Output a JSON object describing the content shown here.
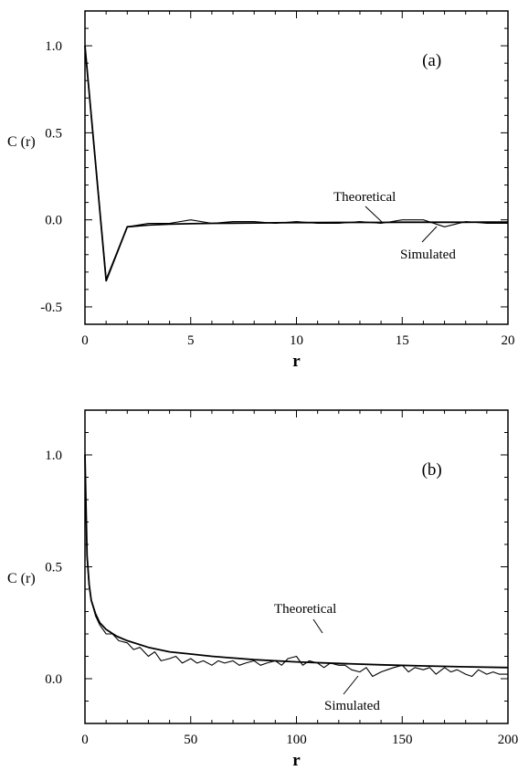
{
  "chart_data": [
    {
      "type": "line",
      "panel_label": "(a)",
      "xlabel": "r",
      "ylabel": "C (r)",
      "xlim": [
        0,
        20
      ],
      "ylim": [
        -0.6,
        1.2
      ],
      "xticks": [
        0,
        5,
        10,
        15,
        20
      ],
      "xtick_labels": [
        "0",
        "5",
        "10",
        "15",
        "20"
      ],
      "yticks": [
        -0.5,
        0.0,
        0.5,
        1.0
      ],
      "ytick_labels": [
        "-0.5",
        "0.0",
        "0.5",
        "1.0"
      ],
      "grid": false,
      "series": [
        {
          "name": "Theoretical",
          "x": [
            0,
            1,
            2,
            3,
            4,
            5,
            6,
            7,
            8,
            9,
            10,
            11,
            12,
            13,
            14,
            15,
            16,
            17,
            18,
            19,
            20
          ],
          "values": [
            1.0,
            -0.35,
            -0.04,
            -0.03,
            -0.025,
            -0.022,
            -0.02,
            -0.019,
            -0.018,
            -0.017,
            -0.016,
            -0.016,
            -0.015,
            -0.015,
            -0.015,
            -0.014,
            -0.014,
            -0.014,
            -0.014,
            -0.013,
            -0.013
          ]
        },
        {
          "name": "Simulated",
          "x": [
            0,
            1,
            2,
            3,
            4,
            5,
            6,
            7,
            8,
            9,
            10,
            11,
            12,
            13,
            14,
            15,
            16,
            17,
            18,
            19,
            20
          ],
          "values": [
            1.0,
            -0.34,
            -0.04,
            -0.02,
            -0.02,
            0.0,
            -0.02,
            -0.01,
            -0.01,
            -0.02,
            -0.01,
            -0.02,
            -0.02,
            -0.01,
            -0.02,
            0.0,
            0.0,
            -0.04,
            -0.01,
            -0.02,
            -0.02
          ]
        }
      ],
      "annotations": [
        {
          "text": "Theoretical",
          "series": "Theoretical"
        },
        {
          "text": "Simulated",
          "series": "Simulated"
        }
      ]
    },
    {
      "type": "line",
      "panel_label": "(b)",
      "xlabel": "r",
      "ylabel": "C (r)",
      "xlim": [
        0,
        200
      ],
      "ylim": [
        -0.2,
        1.2
      ],
      "xticks": [
        0,
        50,
        100,
        150,
        200
      ],
      "xtick_labels": [
        "0",
        "50",
        "100",
        "150",
        "200"
      ],
      "yticks": [
        0.0,
        0.5,
        1.0
      ],
      "ytick_labels": [
        "0.0",
        "0.5",
        "1.0"
      ],
      "grid": false,
      "series": [
        {
          "name": "Theoretical",
          "x": [
            0,
            1,
            2,
            3,
            5,
            7,
            10,
            15,
            20,
            30,
            40,
            50,
            60,
            80,
            100,
            120,
            140,
            160,
            180,
            200
          ],
          "values": [
            1.0,
            0.55,
            0.42,
            0.35,
            0.29,
            0.25,
            0.22,
            0.19,
            0.17,
            0.14,
            0.12,
            0.11,
            0.1,
            0.085,
            0.075,
            0.068,
            0.062,
            0.057,
            0.053,
            0.05
          ]
        },
        {
          "name": "Simulated",
          "x": [
            0,
            1,
            2,
            3,
            5,
            7,
            10,
            13,
            16,
            20,
            23,
            26,
            30,
            33,
            36,
            40,
            43,
            46,
            50,
            53,
            56,
            60,
            63,
            66,
            70,
            73,
            76,
            80,
            83,
            86,
            90,
            93,
            96,
            100,
            103,
            106,
            110,
            113,
            116,
            120,
            123,
            126,
            130,
            133,
            136,
            140,
            143,
            146,
            150,
            153,
            156,
            160,
            163,
            166,
            170,
            173,
            176,
            180,
            183,
            186,
            190,
            193,
            196,
            200
          ],
          "values": [
            1.0,
            0.54,
            0.41,
            0.35,
            0.28,
            0.24,
            0.2,
            0.2,
            0.17,
            0.16,
            0.13,
            0.14,
            0.1,
            0.12,
            0.08,
            0.09,
            0.1,
            0.07,
            0.09,
            0.07,
            0.08,
            0.06,
            0.08,
            0.07,
            0.08,
            0.06,
            0.07,
            0.08,
            0.06,
            0.07,
            0.08,
            0.06,
            0.09,
            0.1,
            0.06,
            0.08,
            0.07,
            0.05,
            0.07,
            0.06,
            0.06,
            0.04,
            0.03,
            0.05,
            0.01,
            0.03,
            0.04,
            0.05,
            0.06,
            0.03,
            0.05,
            0.04,
            0.05,
            0.02,
            0.05,
            0.03,
            0.04,
            0.02,
            0.01,
            0.04,
            0.02,
            0.03,
            0.02,
            0.02
          ]
        }
      ],
      "annotations": [
        {
          "text": "Theoretical",
          "series": "Theoretical"
        },
        {
          "text": "Simulated",
          "series": "Simulated"
        }
      ]
    }
  ]
}
